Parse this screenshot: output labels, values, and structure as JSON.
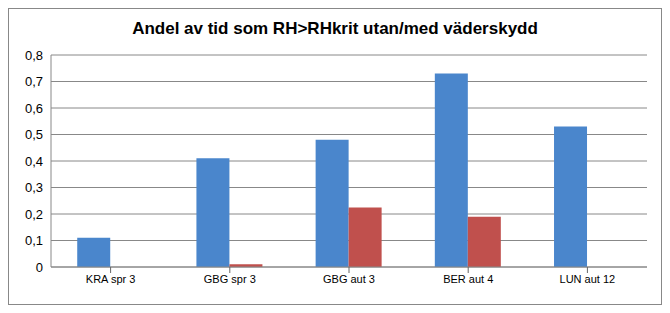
{
  "chart_data": {
    "type": "bar",
    "title": "Andel av tid som RH>RHkrit utan/med väderskydd",
    "categories": [
      "KRA spr 3",
      "GBG spr 3",
      "GBG aut 3",
      "BER aut 4",
      "LUN aut 12"
    ],
    "series": [
      {
        "color": "#4a86cc",
        "values": [
          0.11,
          0.41,
          0.48,
          0.73,
          0.53
        ]
      },
      {
        "color": "#c0504d",
        "values": [
          0,
          0.01,
          0.225,
          0.19,
          0
        ]
      }
    ],
    "ylim": [
      0,
      0.8
    ],
    "yticks": [
      0,
      {
        "value": 0.1,
        "label": "0,1"
      },
      {
        "value": 0.2,
        "label": "0,2"
      },
      {
        "value": 0.3,
        "label": "0,3"
      },
      {
        "value": 0.4,
        "label": "0,4"
      },
      {
        "value": 0.5,
        "label": "0,5"
      },
      {
        "value": 0.6,
        "label": "0,6"
      },
      {
        "value": 0.7,
        "label": "0,7"
      },
      {
        "value": 0.8,
        "label": "0,8"
      }
    ],
    "grid": true
  }
}
